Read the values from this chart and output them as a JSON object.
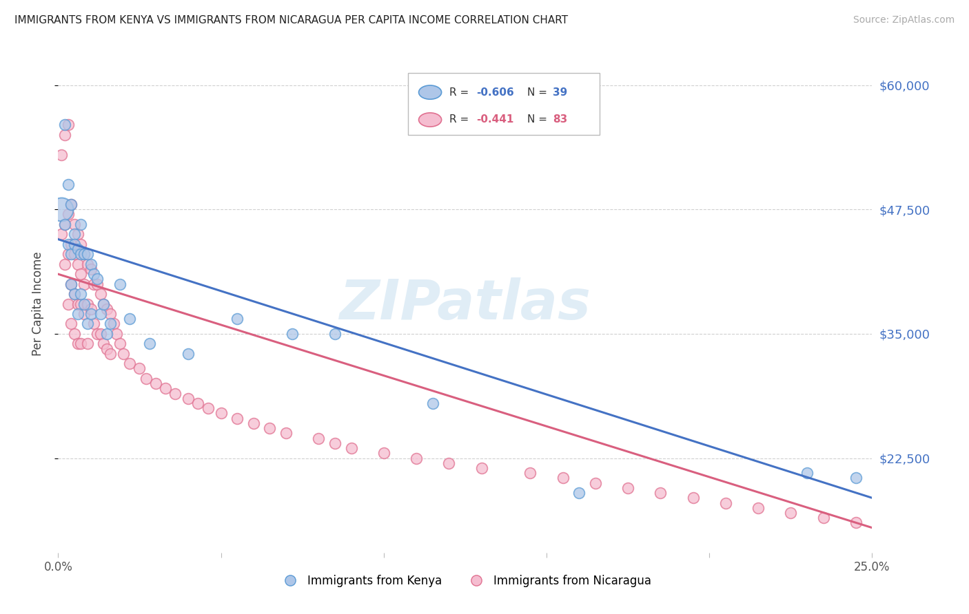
{
  "title": "IMMIGRANTS FROM KENYA VS IMMIGRANTS FROM NICARAGUA PER CAPITA INCOME CORRELATION CHART",
  "source": "Source: ZipAtlas.com",
  "ylabel": "Per Capita Income",
  "xlim": [
    0.0,
    0.25
  ],
  "ylim": [
    13000,
    63000
  ],
  "yticks": [
    22500,
    35000,
    47500,
    60000
  ],
  "ytick_labels": [
    "$22,500",
    "$35,000",
    "$47,500",
    "$60,000"
  ],
  "background_color": "#ffffff",
  "grid_color": "#d0d0d0",
  "kenya_color": "#aec6e8",
  "kenya_edge_color": "#5b9bd5",
  "nicaragua_color": "#f5bdd0",
  "nicaragua_edge_color": "#e07090",
  "kenya_line_color": "#4472c4",
  "nicaragua_line_color": "#d95f7f",
  "axis_label_color": "#4472c4",
  "watermark_text": "ZIPatlas",
  "kenya_label": "Immigrants from Kenya",
  "nicaragua_label": "Immigrants from Nicaragua",
  "kenya_x": [
    0.001,
    0.002,
    0.002,
    0.003,
    0.003,
    0.004,
    0.004,
    0.004,
    0.005,
    0.005,
    0.005,
    0.006,
    0.006,
    0.007,
    0.007,
    0.007,
    0.008,
    0.008,
    0.009,
    0.009,
    0.01,
    0.01,
    0.011,
    0.012,
    0.013,
    0.014,
    0.015,
    0.016,
    0.019,
    0.022,
    0.028,
    0.04,
    0.055,
    0.072,
    0.085,
    0.115,
    0.16,
    0.23,
    0.245
  ],
  "kenya_y": [
    47500,
    56000,
    46000,
    50000,
    44000,
    48000,
    43000,
    40000,
    45000,
    44000,
    39000,
    43500,
    37000,
    46000,
    43000,
    39000,
    43000,
    38000,
    43000,
    36000,
    42000,
    37000,
    41000,
    40500,
    37000,
    38000,
    35000,
    36000,
    40000,
    36500,
    34000,
    33000,
    36500,
    35000,
    35000,
    28000,
    19000,
    21000,
    20500
  ],
  "nicaragua_x": [
    0.001,
    0.001,
    0.002,
    0.002,
    0.002,
    0.003,
    0.003,
    0.003,
    0.003,
    0.004,
    0.004,
    0.004,
    0.004,
    0.005,
    0.005,
    0.005,
    0.005,
    0.006,
    0.006,
    0.006,
    0.006,
    0.007,
    0.007,
    0.007,
    0.007,
    0.008,
    0.008,
    0.008,
    0.009,
    0.009,
    0.009,
    0.01,
    0.01,
    0.011,
    0.011,
    0.012,
    0.012,
    0.013,
    0.013,
    0.014,
    0.014,
    0.015,
    0.015,
    0.016,
    0.016,
    0.017,
    0.018,
    0.019,
    0.02,
    0.022,
    0.025,
    0.027,
    0.03,
    0.033,
    0.036,
    0.04,
    0.043,
    0.046,
    0.05,
    0.055,
    0.06,
    0.065,
    0.07,
    0.08,
    0.085,
    0.09,
    0.1,
    0.11,
    0.12,
    0.13,
    0.145,
    0.155,
    0.165,
    0.175,
    0.185,
    0.195,
    0.205,
    0.215,
    0.225,
    0.235,
    0.245
  ],
  "nicaragua_y": [
    53000,
    45000,
    55000,
    46000,
    42000,
    56000,
    47000,
    43000,
    38000,
    48000,
    44000,
    40000,
    36000,
    46000,
    43000,
    39000,
    35000,
    45000,
    42000,
    38000,
    34000,
    44000,
    41000,
    38000,
    34000,
    43000,
    40000,
    37000,
    42000,
    38000,
    34000,
    41500,
    37500,
    40000,
    36000,
    40000,
    35000,
    39000,
    35000,
    38000,
    34000,
    37500,
    33500,
    37000,
    33000,
    36000,
    35000,
    34000,
    33000,
    32000,
    31500,
    30500,
    30000,
    29500,
    29000,
    28500,
    28000,
    27500,
    27000,
    26500,
    26000,
    25500,
    25000,
    24500,
    24000,
    23500,
    23000,
    22500,
    22000,
    21500,
    21000,
    20500,
    20000,
    19500,
    19000,
    18500,
    18000,
    17500,
    17000,
    16500,
    16000
  ],
  "kenya_line_x0": 0.0,
  "kenya_line_y0": 44500,
  "kenya_line_x1": 0.25,
  "kenya_line_y1": 18500,
  "nicaragua_line_x0": 0.0,
  "nicaragua_line_y0": 41000,
  "nicaragua_line_x1": 0.25,
  "nicaragua_line_y1": 15500
}
